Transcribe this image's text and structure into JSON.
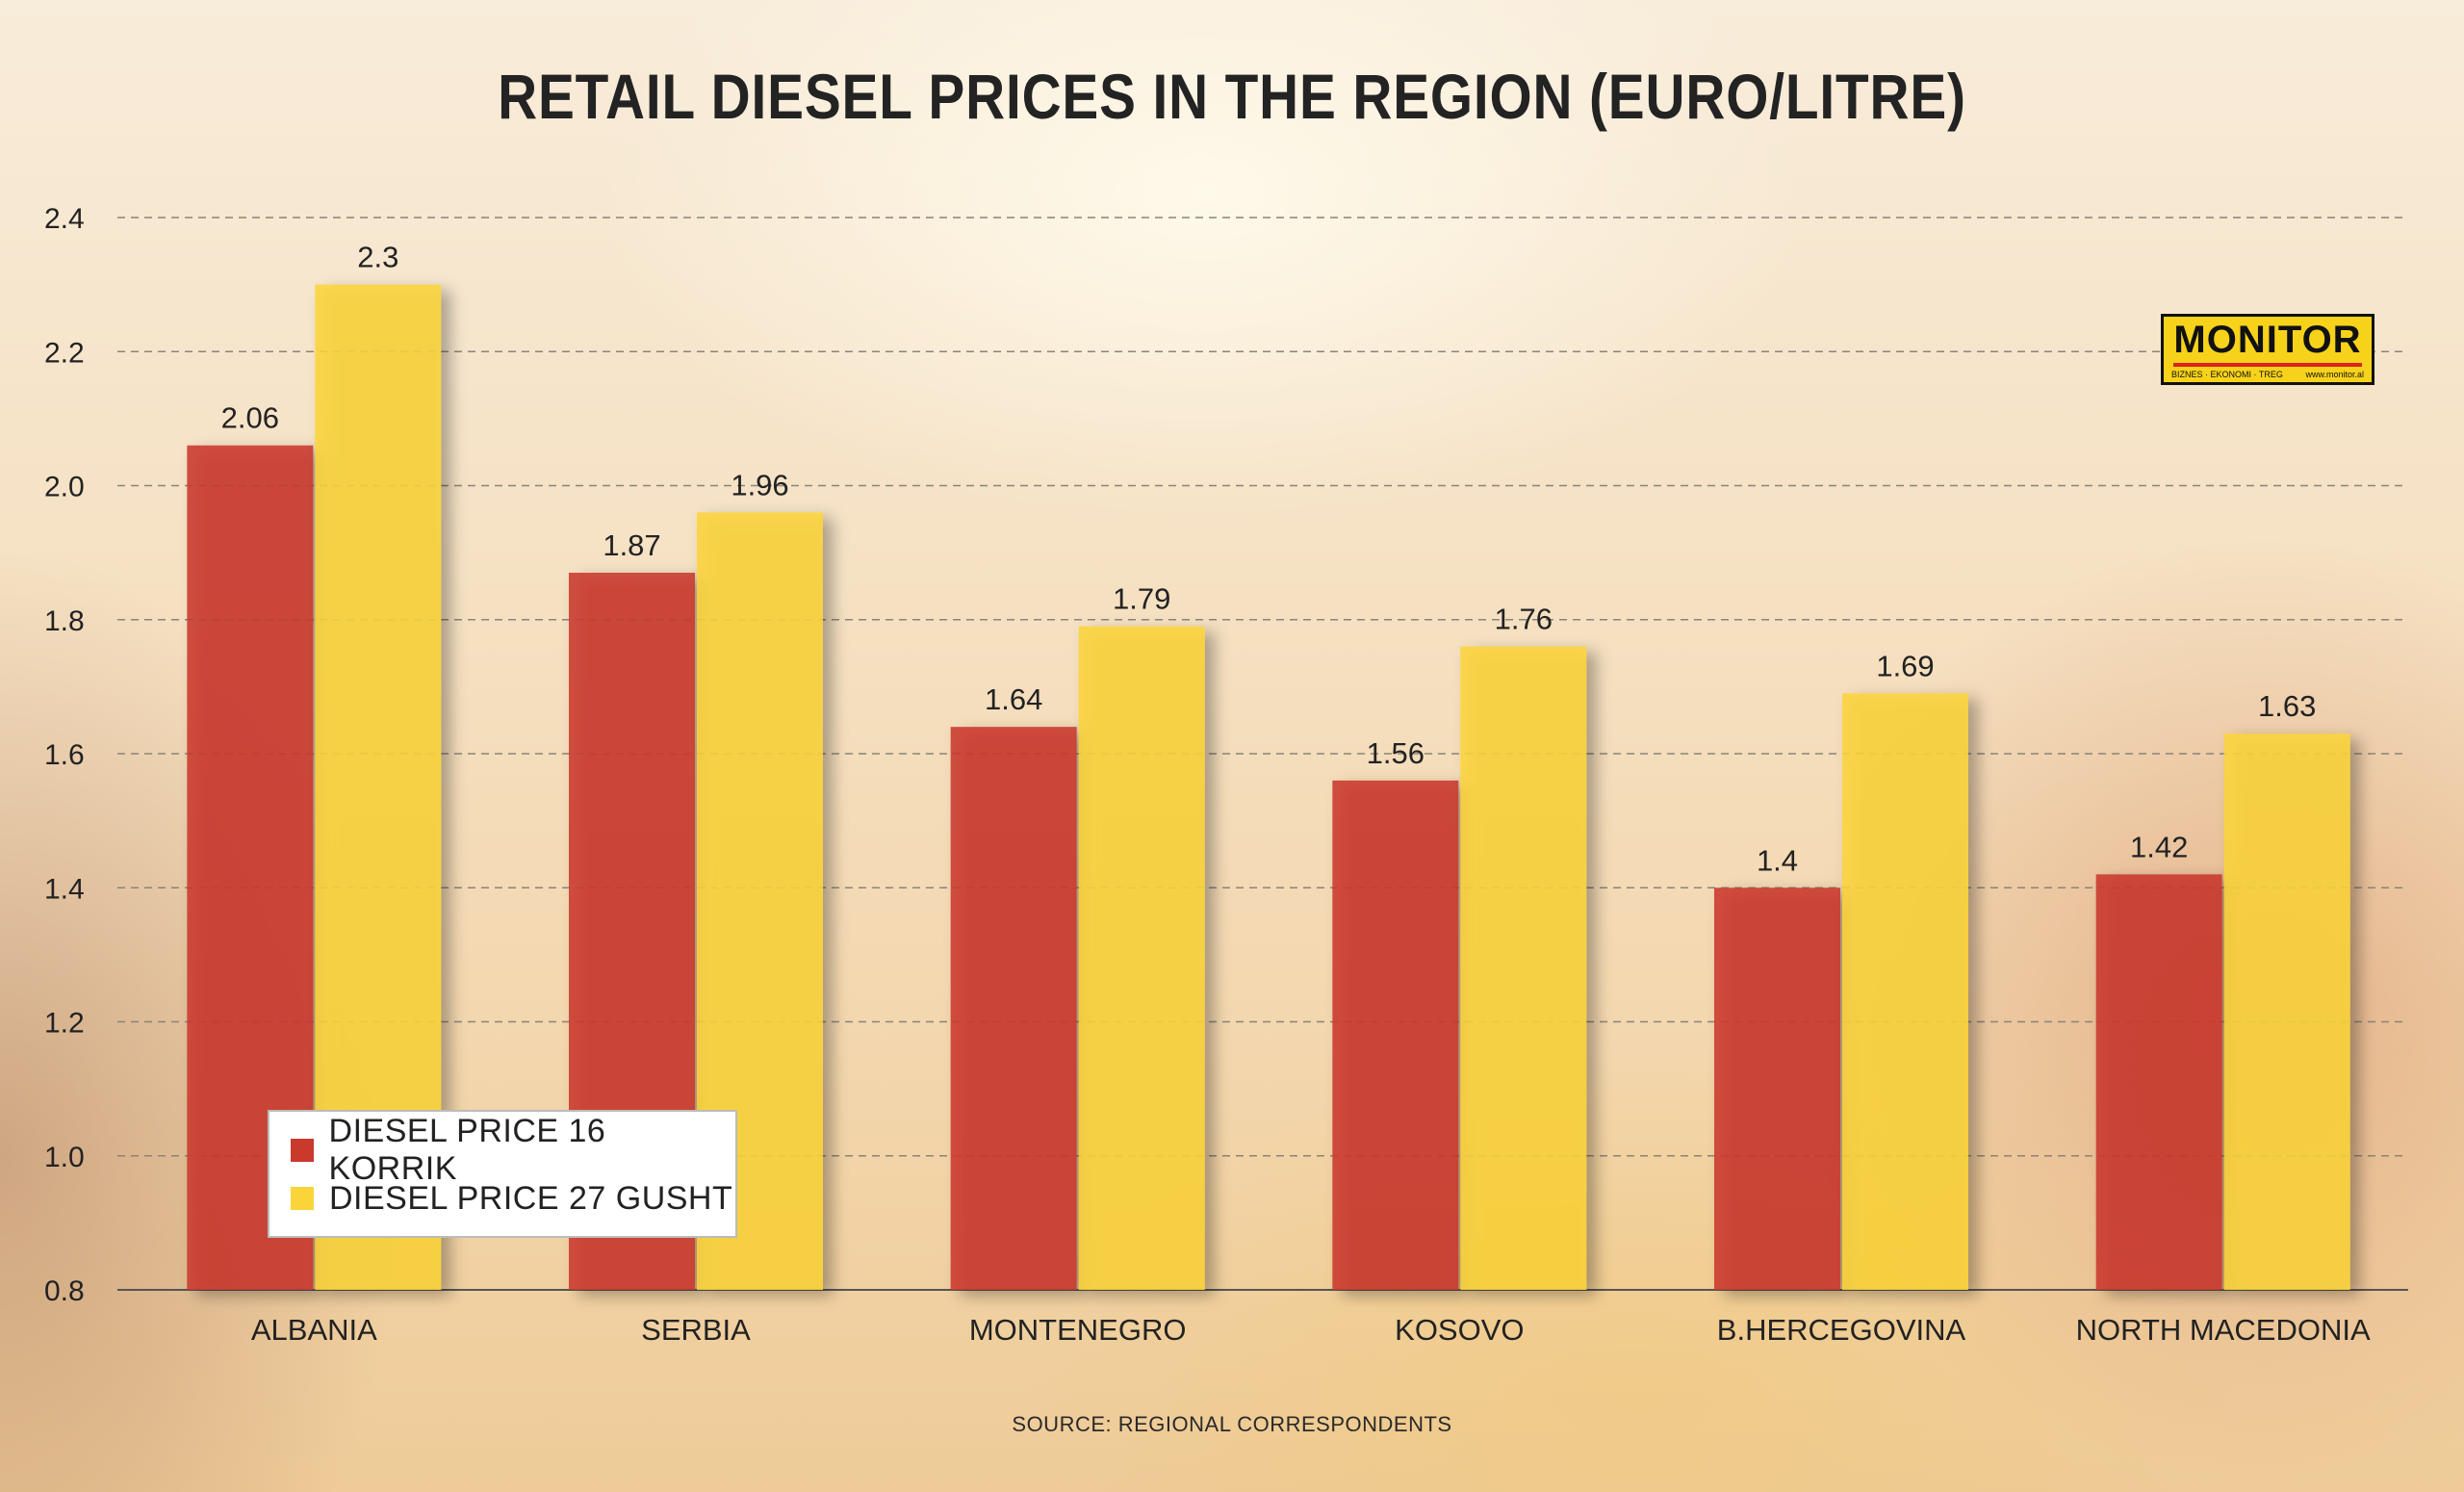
{
  "title": "RETAIL DIESEL PRICES IN THE REGION (EURO/LITRE)",
  "source": "SOURCE: REGIONAL CORRESPONDENTS",
  "logo": {
    "name": "MONITOR",
    "tagline": "BIZNES · EKONOMI · TREG",
    "url": "www.monitor.al"
  },
  "legend": [
    {
      "label": "DIESEL PRICE 16 KORRIK",
      "color": "#c93a2c"
    },
    {
      "label": "DIESEL PRICE 27 GUSHT",
      "color": "#fbd43a"
    }
  ],
  "chart_data": {
    "type": "bar",
    "title": "RETAIL DIESEL PRICES IN THE REGION (EURO/LITRE)",
    "categories": [
      "ALBANIA",
      "SERBIA",
      "MONTENEGRO",
      "KOSOVO",
      "B.HERCEGOVINA",
      "NORTH MACEDONIA"
    ],
    "series": [
      {
        "name": "DIESEL PRICE 16 KORRIK",
        "color": "#c93a2c",
        "values": [
          2.06,
          1.87,
          1.64,
          1.56,
          1.4,
          1.42
        ]
      },
      {
        "name": "DIESEL PRICE 27 GUSHT",
        "color": "#fbd43a",
        "values": [
          2.3,
          1.96,
          1.79,
          1.76,
          1.69,
          1.63
        ]
      }
    ],
    "data_labels": [
      [
        "2.06",
        "1.87",
        "1.64",
        "1.56",
        "1.4",
        "1.42"
      ],
      [
        "2.3",
        "1.96",
        "1.79",
        "1.76",
        "1.69",
        "1.63"
      ]
    ],
    "yticks": [
      "0.8",
      "1.0",
      "1.2",
      "1.4",
      "1.6",
      "1.8",
      "2.0",
      "2.2",
      "2.4"
    ],
    "ylim": [
      0.8,
      2.4
    ],
    "grid": true,
    "legend_position": "bottom-left"
  }
}
